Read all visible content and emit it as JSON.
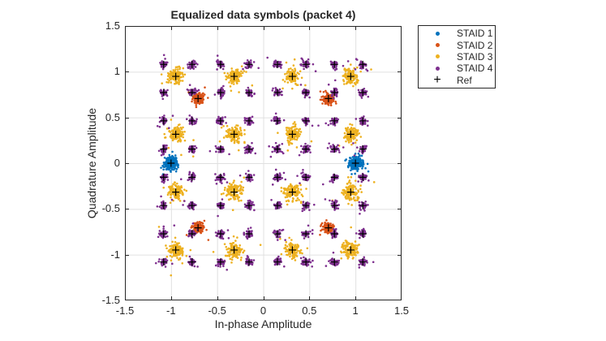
{
  "chart_data": {
    "type": "scatter",
    "title": "Equalized data symbols (packet 4)",
    "xlabel": "In-phase Amplitude",
    "ylabel": "Quadrature Amplitude",
    "xlim": [
      -1.5,
      1.5
    ],
    "ylim": [
      -1.5,
      1.5
    ],
    "xticks": [
      -1.5,
      -1,
      -0.5,
      0,
      0.5,
      1,
      1.5
    ],
    "xtick_labels": [
      "-1.5",
      "-1",
      "-0.5",
      "0",
      "0.5",
      "1",
      "1.5"
    ],
    "yticks": [
      1.5,
      1,
      0.5,
      0,
      -0.5,
      -1,
      -1.5
    ],
    "ytick_labels": [
      "1.5",
      "1",
      "0.5",
      "0",
      "-0.5",
      "-1",
      "-1.5"
    ],
    "grid": true,
    "background": "#ffffff",
    "axis_color": "#262626",
    "grid_color": "#e0e0e0",
    "series": [
      {
        "name": "STAID 1",
        "color": "#0072BD",
        "marker": "dot",
        "points_per_cluster": 300,
        "spread_sigma": 0.031,
        "tail_fraction": 0.05,
        "cluster_centers": [
          [
            -1,
            0
          ],
          [
            1,
            0
          ]
        ]
      },
      {
        "name": "STAID 2",
        "color": "#D95319",
        "marker": "dot",
        "points_per_cluster": 170,
        "spread_sigma": 0.026,
        "tail_fraction": 0.05,
        "cluster_centers": [
          [
            -0.707,
            0.707
          ],
          [
            0.707,
            0.707
          ],
          [
            -0.707,
            -0.707
          ],
          [
            0.707,
            -0.707
          ]
        ]
      },
      {
        "name": "STAID 3",
        "color": "#EDB120",
        "marker": "dot",
        "points_per_cluster": 130,
        "spread_sigma": 0.04,
        "tail_fraction": 0.1,
        "cluster_centers": [
          [
            -0.949,
            0.949
          ],
          [
            -0.316,
            0.949
          ],
          [
            0.316,
            0.949
          ],
          [
            0.949,
            0.949
          ],
          [
            -0.949,
            0.316
          ],
          [
            -0.316,
            0.316
          ],
          [
            0.316,
            0.316
          ],
          [
            0.949,
            0.316
          ],
          [
            -0.949,
            -0.316
          ],
          [
            -0.316,
            -0.316
          ],
          [
            0.316,
            -0.316
          ],
          [
            0.949,
            -0.316
          ],
          [
            -0.949,
            -0.949
          ],
          [
            -0.316,
            -0.949
          ],
          [
            0.316,
            -0.949
          ],
          [
            0.949,
            -0.949
          ]
        ]
      },
      {
        "name": "STAID 4",
        "color": "#7E2F8E",
        "marker": "dot",
        "points_per_cluster": 40,
        "spread_sigma": 0.02,
        "tail_fraction": 0.12,
        "cluster_centers": [
          [
            -1.08,
            1.08
          ],
          [
            -0.772,
            1.08
          ],
          [
            -0.463,
            1.08
          ],
          [
            -0.154,
            1.08
          ],
          [
            0.154,
            1.08
          ],
          [
            0.463,
            1.08
          ],
          [
            0.772,
            1.08
          ],
          [
            1.08,
            1.08
          ],
          [
            -1.08,
            0.772
          ],
          [
            -0.772,
            0.772
          ],
          [
            -0.463,
            0.772
          ],
          [
            -0.154,
            0.772
          ],
          [
            0.154,
            0.772
          ],
          [
            0.463,
            0.772
          ],
          [
            0.772,
            0.772
          ],
          [
            1.08,
            0.772
          ],
          [
            -1.08,
            0.463
          ],
          [
            -0.772,
            0.463
          ],
          [
            -0.463,
            0.463
          ],
          [
            -0.154,
            0.463
          ],
          [
            0.154,
            0.463
          ],
          [
            0.463,
            0.463
          ],
          [
            0.772,
            0.463
          ],
          [
            1.08,
            0.463
          ],
          [
            -1.08,
            0.154
          ],
          [
            -0.772,
            0.154
          ],
          [
            -0.463,
            0.154
          ],
          [
            -0.154,
            0.154
          ],
          [
            0.154,
            0.154
          ],
          [
            0.463,
            0.154
          ],
          [
            0.772,
            0.154
          ],
          [
            1.08,
            0.154
          ],
          [
            -1.08,
            -0.154
          ],
          [
            -0.772,
            -0.154
          ],
          [
            -0.463,
            -0.154
          ],
          [
            -0.154,
            -0.154
          ],
          [
            0.154,
            -0.154
          ],
          [
            0.463,
            -0.154
          ],
          [
            0.772,
            -0.154
          ],
          [
            1.08,
            -0.154
          ],
          [
            -1.08,
            -0.463
          ],
          [
            -0.772,
            -0.463
          ],
          [
            -0.463,
            -0.463
          ],
          [
            -0.154,
            -0.463
          ],
          [
            0.154,
            -0.463
          ],
          [
            0.463,
            -0.463
          ],
          [
            0.772,
            -0.463
          ],
          [
            1.08,
            -0.463
          ],
          [
            -1.08,
            -0.772
          ],
          [
            -0.772,
            -0.772
          ],
          [
            -0.463,
            -0.772
          ],
          [
            -0.154,
            -0.772
          ],
          [
            0.154,
            -0.772
          ],
          [
            0.463,
            -0.772
          ],
          [
            0.772,
            -0.772
          ],
          [
            1.08,
            -0.772
          ],
          [
            -1.08,
            -1.08
          ],
          [
            -0.772,
            -1.08
          ],
          [
            -0.463,
            -1.08
          ],
          [
            -0.154,
            -1.08
          ],
          [
            0.154,
            -1.08
          ],
          [
            0.463,
            -1.08
          ],
          [
            0.772,
            -1.08
          ],
          [
            1.08,
            -1.08
          ]
        ]
      }
    ],
    "ref": {
      "name": "Ref",
      "color": "#000000",
      "marker": "plus",
      "centers_are_union_of_series_cluster_centers": true
    },
    "legend": {
      "position": "outside upper right",
      "entries": [
        {
          "label": "STAID 1",
          "marker": "dot",
          "color": "#0072BD"
        },
        {
          "label": "STAID 2",
          "marker": "dot",
          "color": "#D95319"
        },
        {
          "label": "STAID 3",
          "marker": "dot",
          "color": "#EDB120"
        },
        {
          "label": "STAID 4",
          "marker": "dot",
          "color": "#7E2F8E"
        },
        {
          "label": "Ref",
          "marker": "plus",
          "color": "#000000"
        }
      ]
    }
  }
}
